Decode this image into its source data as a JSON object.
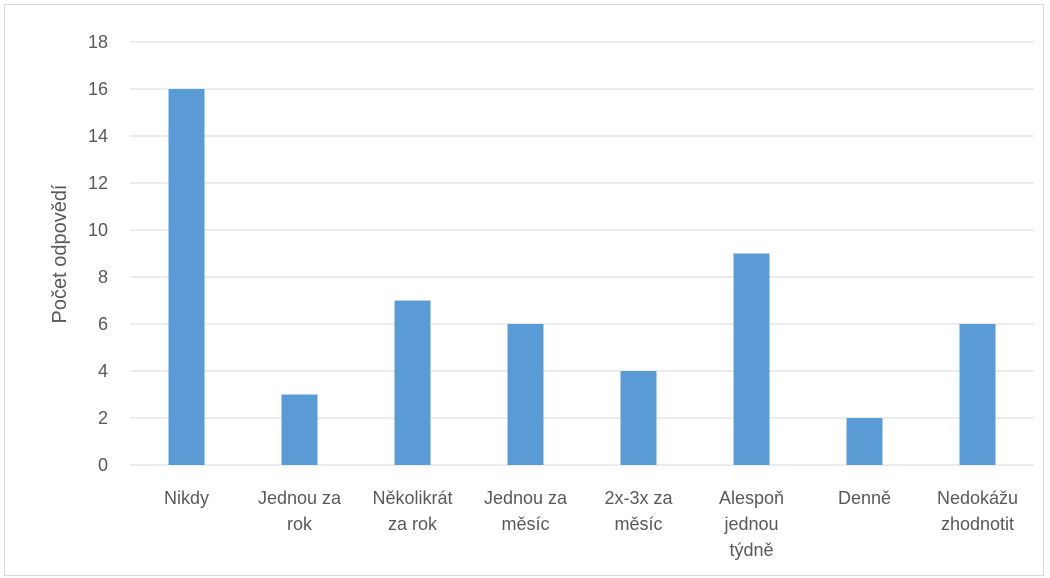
{
  "chart_data": {
    "type": "bar",
    "title": "",
    "xlabel": "",
    "ylabel": "Počet odpovědí",
    "ylim": [
      0,
      18
    ],
    "ytick_step": 2,
    "grid": true,
    "legend": "none",
    "bar_color": "#5b9bd5",
    "categories": [
      [
        "Nikdy"
      ],
      [
        "Jednou za",
        "rok"
      ],
      [
        "Několikrát",
        "za rok"
      ],
      [
        "Jednou za",
        "měsíc"
      ],
      [
        "2x-3x za",
        "měsíc"
      ],
      [
        "Alespoň",
        "jednou",
        "týdně"
      ],
      [
        "Denně"
      ],
      [
        "Nedokážu",
        "zhodnotit"
      ]
    ],
    "values": [
      16,
      3,
      7,
      6,
      4,
      9,
      2,
      6
    ]
  }
}
